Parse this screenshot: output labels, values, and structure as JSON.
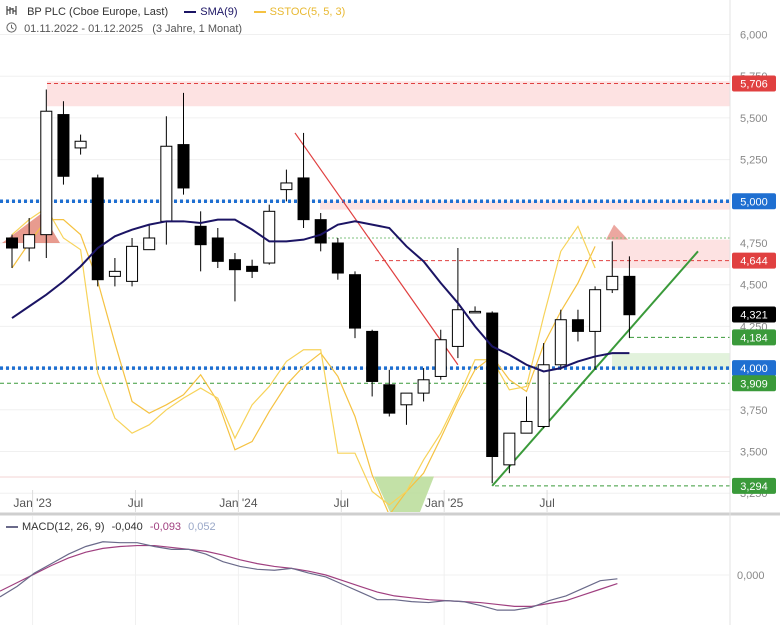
{
  "header": {
    "instrument": "BP PLC (Cboe Europe, Last)",
    "sma_label": "SMA(9)",
    "sstoc_label": "SSTOC(5, 5, 3)",
    "date_range": "01.11.2022 - 01.12.2025",
    "period": "(3 Jahre, 1 Monat)"
  },
  "macd_legend": {
    "label": "MACD(12, 26, 9)",
    "v1": "-0,040",
    "v2": "-0,093",
    "v3": "0,052"
  },
  "colors": {
    "sma": "#1b1464",
    "sstoc": "#f5c242",
    "trend_up": "#3a9a3a",
    "trend_down": "#e04040",
    "level_blue": "#1f6fd1",
    "macd_line": "#6a6a8a",
    "macd_signal": "#a04080"
  },
  "chart_data": [
    {
      "type": "candlestick",
      "title": "BP PLC (Cboe Europe, Last)",
      "interval": "monthly",
      "x_labels": [
        "Jan '23",
        "Jul",
        "Jan '24",
        "Jul",
        "Jan '25",
        "Jul"
      ],
      "y_ticks": [
        "6,000",
        "5,750",
        "5,500",
        "5,250",
        "5,000",
        "4,750",
        "4,500",
        "4,250",
        "4,000",
        "3,750",
        "3,500",
        "3,250"
      ],
      "ylim": [
        3.22,
        6.1
      ],
      "candles": [
        {
          "o": 4.78,
          "h": 4.8,
          "l": 4.6,
          "c": 4.72
        },
        {
          "o": 4.72,
          "h": 4.9,
          "l": 4.64,
          "c": 4.8
        },
        {
          "o": 4.8,
          "h": 5.67,
          "l": 4.66,
          "c": 5.54
        },
        {
          "o": 5.52,
          "h": 5.6,
          "l": 5.1,
          "c": 5.15
        },
        {
          "o": 5.32,
          "h": 5.4,
          "l": 5.28,
          "c": 5.36
        },
        {
          "o": 5.14,
          "h": 5.16,
          "l": 4.49,
          "c": 4.53
        },
        {
          "o": 4.55,
          "h": 4.66,
          "l": 4.49,
          "c": 4.58
        },
        {
          "o": 4.52,
          "h": 4.78,
          "l": 4.49,
          "c": 4.73
        },
        {
          "o": 4.71,
          "h": 4.86,
          "l": 4.71,
          "c": 4.78
        },
        {
          "o": 4.88,
          "h": 5.51,
          "l": 4.74,
          "c": 5.33
        },
        {
          "o": 5.34,
          "h": 5.65,
          "l": 5.04,
          "c": 5.08
        },
        {
          "o": 4.85,
          "h": 4.94,
          "l": 4.58,
          "c": 4.74
        },
        {
          "o": 4.78,
          "h": 4.84,
          "l": 4.6,
          "c": 4.64
        },
        {
          "o": 4.65,
          "h": 4.69,
          "l": 4.4,
          "c": 4.59
        },
        {
          "o": 4.61,
          "h": 4.65,
          "l": 4.54,
          "c": 4.58
        },
        {
          "o": 4.63,
          "h": 4.98,
          "l": 4.62,
          "c": 4.94
        },
        {
          "o": 5.07,
          "h": 5.19,
          "l": 5.0,
          "c": 5.11
        },
        {
          "o": 5.14,
          "h": 5.41,
          "l": 4.84,
          "c": 4.89
        },
        {
          "o": 4.89,
          "h": 4.93,
          "l": 4.7,
          "c": 4.75
        },
        {
          "o": 4.75,
          "h": 4.78,
          "l": 4.53,
          "c": 4.57
        },
        {
          "o": 4.56,
          "h": 4.58,
          "l": 4.18,
          "c": 4.24
        },
        {
          "o": 4.22,
          "h": 4.23,
          "l": 3.83,
          "c": 3.92
        },
        {
          "o": 3.9,
          "h": 3.99,
          "l": 3.71,
          "c": 3.73
        },
        {
          "o": 3.78,
          "h": 3.83,
          "l": 3.66,
          "c": 3.85
        },
        {
          "o": 3.85,
          "h": 4.0,
          "l": 3.8,
          "c": 3.93
        },
        {
          "o": 3.95,
          "h": 4.23,
          "l": 3.93,
          "c": 4.17
        },
        {
          "o": 4.13,
          "h": 4.72,
          "l": 4.06,
          "c": 4.35
        },
        {
          "o": 4.34,
          "h": 4.37,
          "l": 4.33,
          "c": 4.34
        },
        {
          "o": 4.33,
          "h": 4.34,
          "l": 3.31,
          "c": 3.47
        },
        {
          "o": 3.42,
          "h": 3.6,
          "l": 3.37,
          "c": 3.61
        },
        {
          "o": 3.61,
          "h": 3.83,
          "l": 3.62,
          "c": 3.68
        },
        {
          "o": 3.65,
          "h": 4.15,
          "l": 3.64,
          "c": 4.02
        },
        {
          "o": 4.02,
          "h": 4.35,
          "l": 3.99,
          "c": 4.29
        },
        {
          "o": 4.29,
          "h": 4.35,
          "l": 4.16,
          "c": 4.22
        },
        {
          "o": 4.22,
          "h": 4.49,
          "l": 3.99,
          "c": 4.47
        },
        {
          "o": 4.47,
          "h": 4.76,
          "l": 4.45,
          "c": 4.55
        },
        {
          "o": 4.55,
          "h": 4.67,
          "l": 4.18,
          "c": 4.32
        }
      ],
      "sma": [
        4.3,
        4.37,
        4.44,
        4.52,
        4.61,
        4.72,
        4.79,
        4.83,
        4.86,
        4.88,
        4.88,
        4.87,
        4.89,
        4.89,
        4.83,
        4.76,
        4.76,
        4.77,
        4.8,
        4.86,
        4.88,
        4.86,
        4.84,
        4.73,
        4.64,
        4.51,
        4.39,
        4.25,
        4.13,
        4.08,
        4.02,
        3.98,
        4.0,
        4.04,
        4.07,
        4.09,
        4.09
      ],
      "sstoc_fast": [
        4.8,
        4.89,
        4.96,
        4.78,
        4.71,
        3.97,
        3.7,
        3.61,
        3.66,
        3.75,
        3.82,
        3.88,
        3.82,
        3.58,
        3.78,
        3.89,
        4.04,
        4.11,
        4.11,
        3.49,
        3.49,
        3.26,
        3.18,
        3.26,
        3.45,
        3.61,
        3.82,
        4.05,
        4.05,
        3.87,
        3.89,
        4.31,
        4.7,
        4.85,
        4.6
      ],
      "sstoc_slow": [
        4.6,
        4.75,
        4.89,
        4.89,
        4.8,
        4.52,
        4.15,
        3.8,
        3.73,
        3.78,
        3.84,
        3.96,
        3.8,
        3.51,
        3.56,
        3.74,
        3.9,
        4.01,
        4.09,
        3.95,
        3.71,
        3.36,
        3.12,
        3.26,
        3.37,
        3.58,
        3.8,
        3.99,
        4.07,
        3.93,
        3.86,
        4.14,
        4.34,
        4.51,
        4.73
      ],
      "levels": [
        {
          "value": 5.706,
          "label": "5,706",
          "color": "#e04040",
          "style": "dashed"
        },
        {
          "value": 5.0,
          "label": "5,000",
          "color": "#1f6fd1",
          "style": "dotted"
        },
        {
          "value": 4.644,
          "label": "4,644",
          "color": "#e04040",
          "style": "dashed"
        },
        {
          "value": 4.321,
          "label": "4,321",
          "color": "#000000",
          "style": "none"
        },
        {
          "value": 4.184,
          "label": "4,184",
          "color": "#3a9a3a",
          "style": "dashed"
        },
        {
          "value": 4.0,
          "label": "4,000",
          "color": "#1f6fd1",
          "style": "dotted"
        },
        {
          "value": 3.909,
          "label": "3,909",
          "color": "#3a9a3a",
          "style": "dashed"
        },
        {
          "value": 3.294,
          "label": "3,294",
          "color": "#3a9a3a",
          "style": "dashed"
        }
      ],
      "trendlines": [
        {
          "from": [
            16.5,
            5.41
          ],
          "to": [
            26,
            4.02
          ],
          "color": "#e04040"
        },
        {
          "from": [
            28,
            3.294
          ],
          "to": [
            40,
            4.7
          ],
          "color": "#3a9a3a"
        }
      ]
    },
    {
      "type": "line",
      "title": "MACD(12, 26, 9)",
      "y_ticks": [
        "0,000"
      ],
      "ylim": [
        -0.5,
        0.45
      ],
      "macd": [
        -0.23,
        -0.12,
        0.02,
        0.12,
        0.22,
        0.3,
        0.35,
        0.34,
        0.34,
        0.3,
        0.27,
        0.27,
        0.22,
        0.14,
        0.09,
        0.06,
        0.05,
        0.07,
        0.02,
        -0.02,
        -0.1,
        -0.18,
        -0.26,
        -0.26,
        -0.28,
        -0.29,
        -0.27,
        -0.28,
        -0.32,
        -0.37,
        -0.37,
        -0.34,
        -0.27,
        -0.22,
        -0.14,
        -0.06,
        -0.04
      ],
      "signal": [
        -0.17,
        -0.08,
        0.01,
        0.1,
        0.18,
        0.24,
        0.28,
        0.3,
        0.31,
        0.31,
        0.29,
        0.27,
        0.25,
        0.21,
        0.16,
        0.12,
        0.09,
        0.07,
        0.04,
        0.0,
        -0.06,
        -0.12,
        -0.18,
        -0.22,
        -0.24,
        -0.26,
        -0.27,
        -0.28,
        -0.29,
        -0.31,
        -0.33,
        -0.33,
        -0.3,
        -0.27,
        -0.21,
        -0.15,
        -0.09
      ]
    }
  ]
}
